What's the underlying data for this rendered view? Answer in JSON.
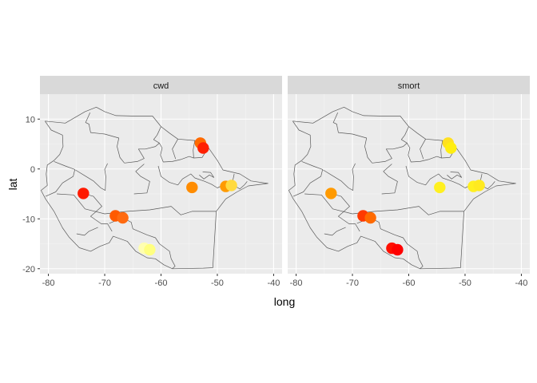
{
  "chart_data": {
    "type": "scatter",
    "xlabel": "long",
    "ylabel": "lat",
    "xlim": [
      -81.5,
      -38.5
    ],
    "ylim": [
      -21,
      15
    ],
    "x_ticks": [
      -80,
      -70,
      -60,
      -50,
      -40
    ],
    "y_ticks": [
      -20,
      -10,
      0,
      10
    ],
    "grid": true,
    "legend": "none",
    "basemap": "country and state boundary outlines (grey lines)",
    "panels": [
      {
        "title": "cwd",
        "points": [
          {
            "long": -53.0,
            "lat": 5.2,
            "color": "#FF6A00"
          },
          {
            "long": -52.5,
            "lat": 4.2,
            "color": "#FF2000"
          },
          {
            "long": -54.5,
            "lat": -3.7,
            "color": "#FF8C00"
          },
          {
            "long": -48.5,
            "lat": -3.5,
            "color": "#FF9A00"
          },
          {
            "long": -47.5,
            "lat": -3.3,
            "color": "#FFDA40"
          },
          {
            "long": -73.8,
            "lat": -4.9,
            "color": "#FF1A00"
          },
          {
            "long": -68.1,
            "lat": -9.4,
            "color": "#FF5A00"
          },
          {
            "long": -66.8,
            "lat": -9.8,
            "color": "#FF6A10"
          },
          {
            "long": -63.0,
            "lat": -15.9,
            "color": "#FFFFB0"
          },
          {
            "long": -62.0,
            "lat": -16.2,
            "color": "#FFFF80"
          }
        ]
      },
      {
        "title": "smort",
        "points": [
          {
            "long": -53.0,
            "lat": 5.2,
            "color": "#FFE020"
          },
          {
            "long": -52.5,
            "lat": 4.2,
            "color": "#FFEE10"
          },
          {
            "long": -54.5,
            "lat": -3.7,
            "color": "#FFF020"
          },
          {
            "long": -48.5,
            "lat": -3.5,
            "color": "#FFF020"
          },
          {
            "long": -47.5,
            "lat": -3.3,
            "color": "#FFEA20"
          },
          {
            "long": -73.8,
            "lat": -4.9,
            "color": "#FF9A00"
          },
          {
            "long": -68.1,
            "lat": -9.4,
            "color": "#FF3A00"
          },
          {
            "long": -66.8,
            "lat": -9.8,
            "color": "#FF6A00"
          },
          {
            "long": -63.0,
            "lat": -15.9,
            "color": "#FF1000"
          },
          {
            "long": -62.0,
            "lat": -16.2,
            "color": "#FF0000"
          }
        ]
      }
    ]
  }
}
